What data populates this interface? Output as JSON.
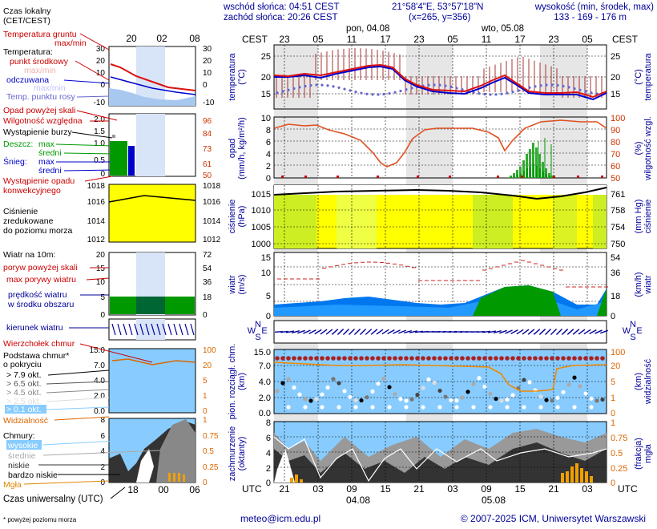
{
  "header": {
    "sunrise": "wschód słońca: 04:51 CEST",
    "sunset": "zachód słońca: 20:26 CEST",
    "coords": "21°58'4\"E, 53°57'18\"N",
    "grid": "(x=265, y=356)",
    "elevation_title": "wysokość (min, środek, max)",
    "elevation_values": "133 - 169 - 176 m",
    "day1": "pon, 04.08",
    "day2": "wto, 05.08",
    "cest_left": "CEST",
    "cest_right": "CEST",
    "cest_hours": [
      "23",
      "05",
      "11",
      "17",
      "23",
      "05",
      "11",
      "17",
      "23",
      "05"
    ]
  },
  "legend": {
    "time_local": "Czas lokalny",
    "time_local_sub": "(CET/CEST)",
    "legend_hours": [
      "20",
      "02",
      "08"
    ],
    "soil_temp": "Temperatura gruntu",
    "soil_sub": "max/min",
    "temp_label": "Temperatura:",
    "temp_mid": "punkt środkowy",
    "temp_maxmin": "max/min",
    "temp_felt": "odczuwana",
    "temp_dew": "Temp. punktu rosy",
    "precip_over": "Opad powyżej skali",
    "humidity": "Wilgotność względna",
    "storm": "Wystąpienie burzy",
    "rain": "Deszcz:",
    "rain_max": "max",
    "rain_mid": "średni",
    "snow": "Śnieg:",
    "snow_max": "max",
    "snow_mid": "średni",
    "conv1": "Wystąpienie opadu",
    "conv2": "konwekcyjnego",
    "pressure1": "Ciśnienie",
    "pressure2": "zredukowane",
    "pressure3": "do poziomu morza",
    "wind": "Wiatr na 10m:",
    "gust_over": "poryw powyżej skali",
    "gust_max": "max porywy wiatru",
    "wind_speed1": "prędkość wiatru",
    "wind_speed2": "w środku obszaru",
    "wind_dir": "kierunek wiatru",
    "cloud_top": "Wierzchołek chmur",
    "cloud_base1": "Podstawa chmur*",
    "cloud_base2": "o pokryciu",
    "okt": [
      "> 7.9 okt.",
      "> 6.5 okt.",
      "> 4.5 okt.",
      "> 2.5 okt.",
      "> 0.1 okt."
    ],
    "visibility": "Widzialność",
    "clouds": "Chmury:",
    "cl_high": "wysokie",
    "cl_mid": "średnie",
    "cl_low": "niskie",
    "cl_vlow": "bardzo niskie",
    "fog": "Mgła",
    "utc_hours": [
      "18",
      "00",
      "06"
    ],
    "utc_time": "Czas uniwersalny (UTC)",
    "footnote": "* powyżej poziomu morza",
    "ax_temp_l": [
      "30",
      "20",
      "10",
      "0",
      "-10"
    ],
    "ax_temp_r": [
      "30",
      "20",
      "10",
      "0",
      "-10"
    ],
    "ax_prec_l": [
      "2.0",
      "1.5",
      "1.0",
      "0.5",
      "0"
    ],
    "ax_prec_r": [
      "96",
      "84",
      "73",
      "61",
      "50"
    ],
    "ax_pres_l": [
      "1018",
      "1016",
      "1014",
      "1012"
    ],
    "ax_pres_r": [
      "1018",
      "1016",
      "1014",
      "1012"
    ],
    "ax_wind_l": [
      "20",
      "15",
      "10",
      "5",
      "0"
    ],
    "ax_wind_r": [
      "72",
      "54",
      "36",
      "18",
      "0"
    ],
    "ax_cb_l": [
      "15.0",
      "7.0",
      "4.0",
      "2.0",
      "0.0"
    ],
    "ax_cb_r": [
      "100",
      "20",
      "5",
      "1",
      "0"
    ],
    "ax_cl_l": [
      "8",
      "6",
      "4",
      "2",
      "0"
    ],
    "ax_cl_r": [
      "1",
      "0.75",
      "0.5",
      "0.25",
      "0"
    ]
  },
  "panels": {
    "temp_label_l1": "temperatura",
    "temp_label_l2": "(°C)",
    "temp_label_r1": "(°C)",
    "temp_label_r2": "temperatura",
    "temp_l": [
      "25",
      "20",
      "15"
    ],
    "temp_r": [
      "25",
      "20",
      "15"
    ],
    "prec_label_l1": "opad",
    "prec_label_l2": "(mm/h, kg/m²/h)",
    "prec_label_r1": "(%)",
    "prec_label_r2": "wilgotność wzgl.",
    "prec_l": [
      "10",
      "8",
      "6",
      "4",
      "2",
      "0"
    ],
    "prec_r": [
      "100",
      "90",
      "80",
      "70",
      "60",
      "50"
    ],
    "pres_label_l1": "ciśnienie",
    "pres_label_l2": "(hPa)",
    "pres_label_r1": "(mm Hg)",
    "pres_label_r2": "ciśnienie",
    "pres_l": [
      "1015",
      "1010",
      "1005",
      "1000"
    ],
    "pres_r": [
      "761",
      "758",
      "754",
      "750"
    ],
    "wind_label_l1": "wiatr",
    "wind_label_l2": "(m/s)",
    "wind_label_r1": "(km/h)",
    "wind_label_r2": "wiatr",
    "wind_l": [
      "15",
      "10",
      "5",
      "0"
    ],
    "wind_r": [
      "54",
      "36",
      "18",
      "0"
    ],
    "compass_n": "N",
    "compass_w": "W",
    "compass_s": "S",
    "compass_e": "E",
    "cb_label_l1": "pion. rozciągł. chm.",
    "cb_label_l2": "(km)",
    "cb_label_r1": "(km)",
    "cb_label_r2": "widzialność",
    "cb_l": [
      "15.0",
      "7.0",
      "4.0",
      "2.0",
      "0.0"
    ],
    "cb_r": [
      "100",
      "20",
      "5",
      "1",
      "0"
    ],
    "cl_label_l1": "zachmurzenie",
    "cl_label_l2": "(oktanty)",
    "cl_label_r1": "(frakcja)",
    "cl_label_r2": "mgła",
    "cl_l": [
      "8",
      "6",
      "4",
      "2",
      "0"
    ],
    "cl_r": [
      "1",
      "0.75",
      "0.5",
      "0.25",
      "0"
    ],
    "utc_left": "UTC",
    "utc_right": "UTC",
    "utc_hours": [
      "21",
      "03",
      "09",
      "15",
      "21",
      "03",
      "09",
      "15",
      "21",
      "03"
    ],
    "date1": "04.08",
    "date2": "05.08"
  },
  "footer": {
    "email": "meteo@icm.edu.pl",
    "copyright": "© 2007-2025 ICM, Uniwersytet Warszawski"
  },
  "colors": {
    "temp_red": "#dd1111",
    "felt_blue": "#0000cc",
    "humidity": "#e05020",
    "pressure_fill": "#ffff00",
    "wind_blue": "#0099ff",
    "wind_green": "#009900",
    "cloud_sky": "#88ccff",
    "text_blue": "#000099",
    "text_red": "#cc0000",
    "text_orange": "#dd6600"
  }
}
